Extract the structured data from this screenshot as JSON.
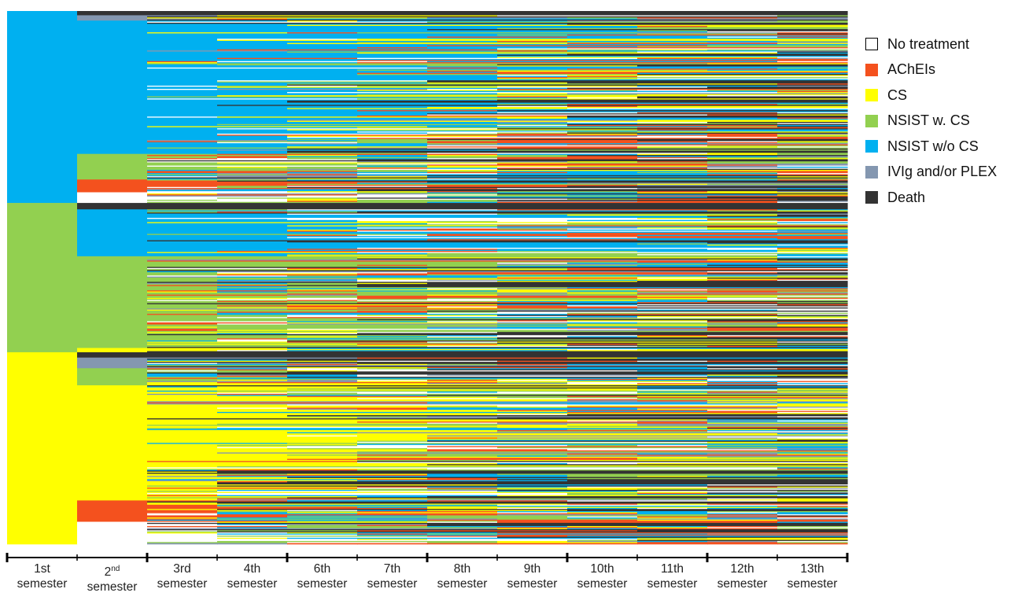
{
  "chart_data": {
    "type": "heatmap",
    "title": "",
    "xlabel": "",
    "ylabel": "",
    "x_ticks": [
      {
        "num": "1st",
        "sup": "",
        "word": "semester"
      },
      {
        "num": "2",
        "sup": "nd",
        "word": "semester"
      },
      {
        "num": "3rd",
        "sup": "",
        "word": "semester"
      },
      {
        "num": "4th",
        "sup": "",
        "word": "semester"
      },
      {
        "num": "6th",
        "sup": "",
        "word": "semester"
      },
      {
        "num": "7th",
        "sup": "",
        "word": "semester"
      },
      {
        "num": "8th",
        "sup": "",
        "word": "semester"
      },
      {
        "num": "9th",
        "sup": "",
        "word": "semester"
      },
      {
        "num": "10th",
        "sup": "",
        "word": "semester"
      },
      {
        "num": "11th",
        "sup": "",
        "word": "semester"
      },
      {
        "num": "12th",
        "sup": "",
        "word": "semester"
      },
      {
        "num": "13th",
        "sup": "",
        "word": "semester"
      }
    ],
    "legend": [
      {
        "key": "none",
        "label": "No treatment",
        "color": "#ffffff"
      },
      {
        "key": "ache",
        "label": "AChEIs",
        "color": "#f4511e"
      },
      {
        "key": "cs",
        "label": "CS",
        "color": "#ffff00"
      },
      {
        "key": "nsw",
        "label": "NSIST w. CS",
        "color": "#92d050"
      },
      {
        "key": "nswo",
        "label": "NSIST w/o CS",
        "color": "#00b0f0"
      },
      {
        "key": "ivig",
        "label": "IVIg and/or PLEX",
        "color": "#8497b0"
      },
      {
        "key": "death",
        "label": "Death",
        "color": "#333333"
      }
    ],
    "legend_position": "right",
    "sequence_count": 500,
    "initial_state_counts": {
      "NSIST w/o CS": 180,
      "NSIST w. CS": 140,
      "CS": 180
    },
    "second_semester_blocks": [
      {
        "state": "Death",
        "count": 4
      },
      {
        "state": "IVIg and/or PLEX",
        "count": 5
      },
      {
        "state": "NSIST w/o CS",
        "count": 125
      },
      {
        "state": "NSIST w. CS",
        "count": 24
      },
      {
        "state": "AChEIs",
        "count": 12
      },
      {
        "state": "No treatment",
        "count": 10
      },
      {
        "state": "Death",
        "count": 6
      },
      {
        "state": "NSIST w/o CS",
        "count": 44
      },
      {
        "state": "NSIST w. CS",
        "count": 86
      },
      {
        "state": "CS",
        "count": 4
      },
      {
        "state": "Death",
        "count": 5
      },
      {
        "state": "IVIg and/or PLEX",
        "count": 10
      },
      {
        "state": "NSIST w. CS",
        "count": 16
      },
      {
        "state": "CS",
        "count": 108
      },
      {
        "state": "AChEIs",
        "count": 20
      },
      {
        "state": "No treatment",
        "count": 21
      }
    ]
  }
}
